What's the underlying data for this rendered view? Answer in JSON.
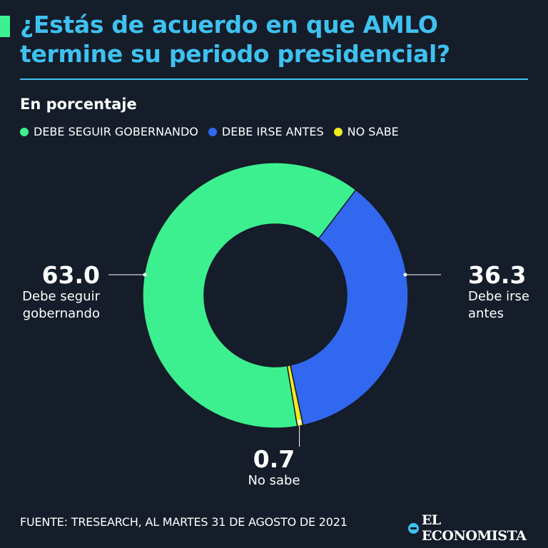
{
  "header": {
    "title": "¿Estás de acuerdo en que AMLO termine su periodo presidencial?",
    "subtitle": "En porcentaje"
  },
  "chart_data": {
    "type": "pie",
    "title": "¿Estás de acuerdo en que AMLO termine su periodo presidencial?",
    "subtitle": "En porcentaje",
    "categories": [
      "DEBE SEGUIR GOBERNANDO",
      "DEBE IRSE ANTES",
      "NO SABE"
    ],
    "values": [
      63.0,
      36.3,
      0.7
    ],
    "value_labels": [
      "63.0",
      "36.3",
      "0.7"
    ],
    "slice_labels": [
      "Debe seguir gobernando",
      "Debe irse antes",
      "No sabe"
    ],
    "colors": [
      "#3df08f",
      "#3267f0",
      "#f2ea1e"
    ],
    "donut": true,
    "legend_position": "top-left"
  },
  "labels": {
    "left": {
      "value": "63.0",
      "line1": "Debe seguir",
      "line2": "gobernando"
    },
    "right": {
      "value": "36.3",
      "line1": "Debe irse",
      "line2": "antes"
    },
    "bottom": {
      "value": "0.7",
      "line1": "No sabe"
    }
  },
  "footer": {
    "source": "FUENTE: TRESEARCH, AL MARTES 31 DE AGOSTO DE 2021",
    "brand": "EL ECONOMISTA"
  }
}
